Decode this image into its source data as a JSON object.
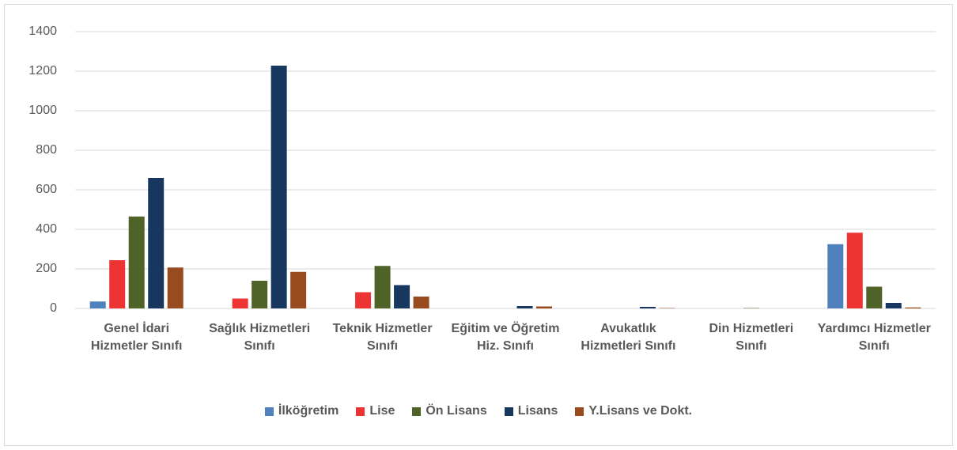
{
  "chart_data": {
    "type": "bar",
    "categories": [
      "Genel İdari Hizmetler Sınıfı",
      "Sağlık Hizmetleri Sınıfı",
      "Teknik Hizmetler Sınıfı",
      "Eğitim ve Öğretim Hiz. Sınıfı",
      "Avukatlık Hizmetleri Sınıfı",
      "Din Hizmetleri Sınıfı",
      "Yardımcı Hizmetler Sınıfı"
    ],
    "series": [
      {
        "name": "İlköğretim",
        "color": "#4f81bd",
        "values": [
          35,
          0,
          0,
          0,
          0,
          0,
          325
        ]
      },
      {
        "name": "Lise",
        "color": "#ee3333",
        "values": [
          244,
          50,
          82,
          0,
          0,
          0,
          383
        ]
      },
      {
        "name": "Ön Lisans",
        "color": "#4f6228",
        "values": [
          465,
          140,
          215,
          0,
          0,
          2,
          110
        ]
      },
      {
        "name": "Lisans",
        "color": "#17375e",
        "values": [
          660,
          1228,
          118,
          12,
          8,
          0,
          28
        ]
      },
      {
        "name": "Y.Lisans ve Dokt.",
        "color": "#974b1f",
        "values": [
          207,
          185,
          60,
          10,
          2,
          0,
          5
        ]
      }
    ],
    "ylim": [
      0,
      1400
    ],
    "yticks": [
      0,
      200,
      400,
      600,
      800,
      1000,
      1200,
      1400
    ],
    "grid": true,
    "legend": "bottom"
  }
}
